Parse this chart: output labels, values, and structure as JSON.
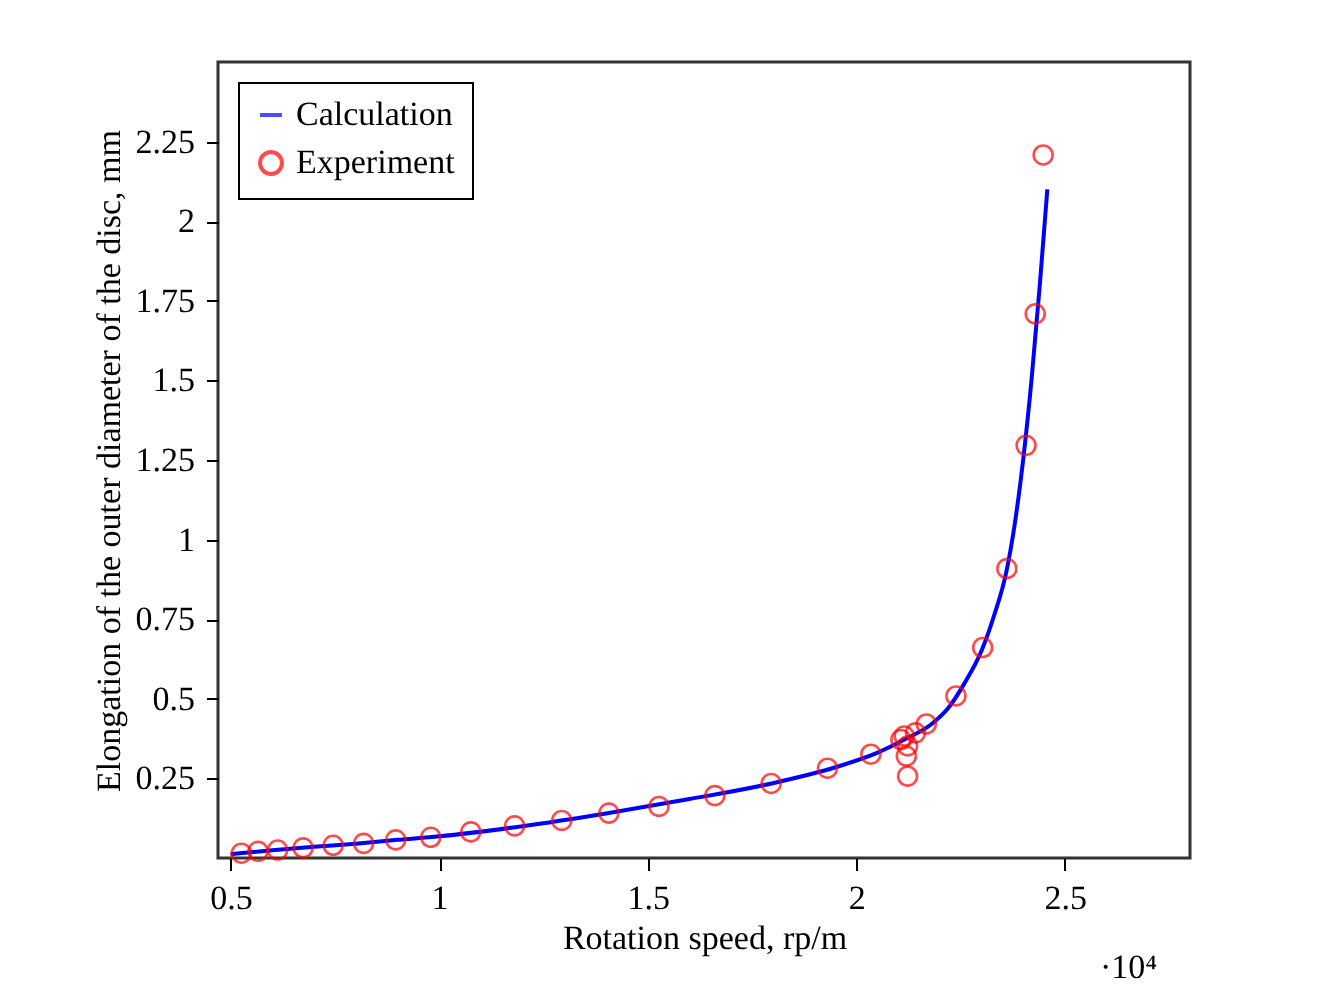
{
  "chart_data": {
    "type": "line",
    "xlabel": "Rotation speed, rp/m",
    "ylabel": "Elongation of the outer diameter of the disc, mm",
    "xlim": [
      0.47,
      2.8
    ],
    "xticks": [
      0.5,
      1,
      1.5,
      2,
      2.5
    ],
    "ylim": [
      0,
      2.5
    ],
    "yticks": [
      0.25,
      0.5,
      0.75,
      1,
      1.25,
      1.5,
      1.75,
      2,
      2.25
    ],
    "grid": false,
    "legend": "top left",
    "annotations": [
      "·10⁴"
    ],
    "series": [
      {
        "name": "Calculation",
        "type": "line",
        "color": "#0000ff",
        "marker": "none",
        "line_style": "solid",
        "x": [
          0.5,
          0.6,
          0.7,
          0.8,
          0.9,
          1.0,
          1.2,
          1.4,
          1.6,
          1.8,
          1.95,
          2.05,
          2.12,
          2.18,
          2.22,
          2.26,
          2.3,
          2.33,
          2.36,
          2.38,
          2.4,
          2.42,
          2.44,
          2.458
        ],
        "values": [
          0.012,
          0.024,
          0.035,
          0.045,
          0.057,
          0.068,
          0.1,
          0.14,
          0.185,
          0.235,
          0.285,
          0.33,
          0.375,
          0.42,
          0.47,
          0.55,
          0.65,
          0.76,
          0.9,
          1.05,
          1.25,
          1.5,
          1.8,
          2.1
        ]
      },
      {
        "name": "Experiment",
        "type": "scatter",
        "color": "#ff0000",
        "marker": "circle",
        "x": [
          0.526,
          0.566,
          0.613,
          0.674,
          0.746,
          0.819,
          0.896,
          0.98,
          1.076,
          1.181,
          1.294,
          1.407,
          1.527,
          1.661,
          1.796,
          1.931,
          2.035,
          2.107,
          2.115,
          2.123,
          2.12,
          2.123,
          2.142,
          2.168,
          2.239,
          2.303,
          2.361,
          2.407,
          2.429,
          2.448
        ],
        "values": [
          0.015,
          0.021,
          0.025,
          0.032,
          0.04,
          0.046,
          0.057,
          0.065,
          0.082,
          0.101,
          0.118,
          0.141,
          0.162,
          0.196,
          0.234,
          0.282,
          0.326,
          0.372,
          0.383,
          0.352,
          0.32,
          0.257,
          0.393,
          0.421,
          0.509,
          0.661,
          0.909,
          1.296,
          1.709,
          2.208
        ]
      }
    ]
  }
}
